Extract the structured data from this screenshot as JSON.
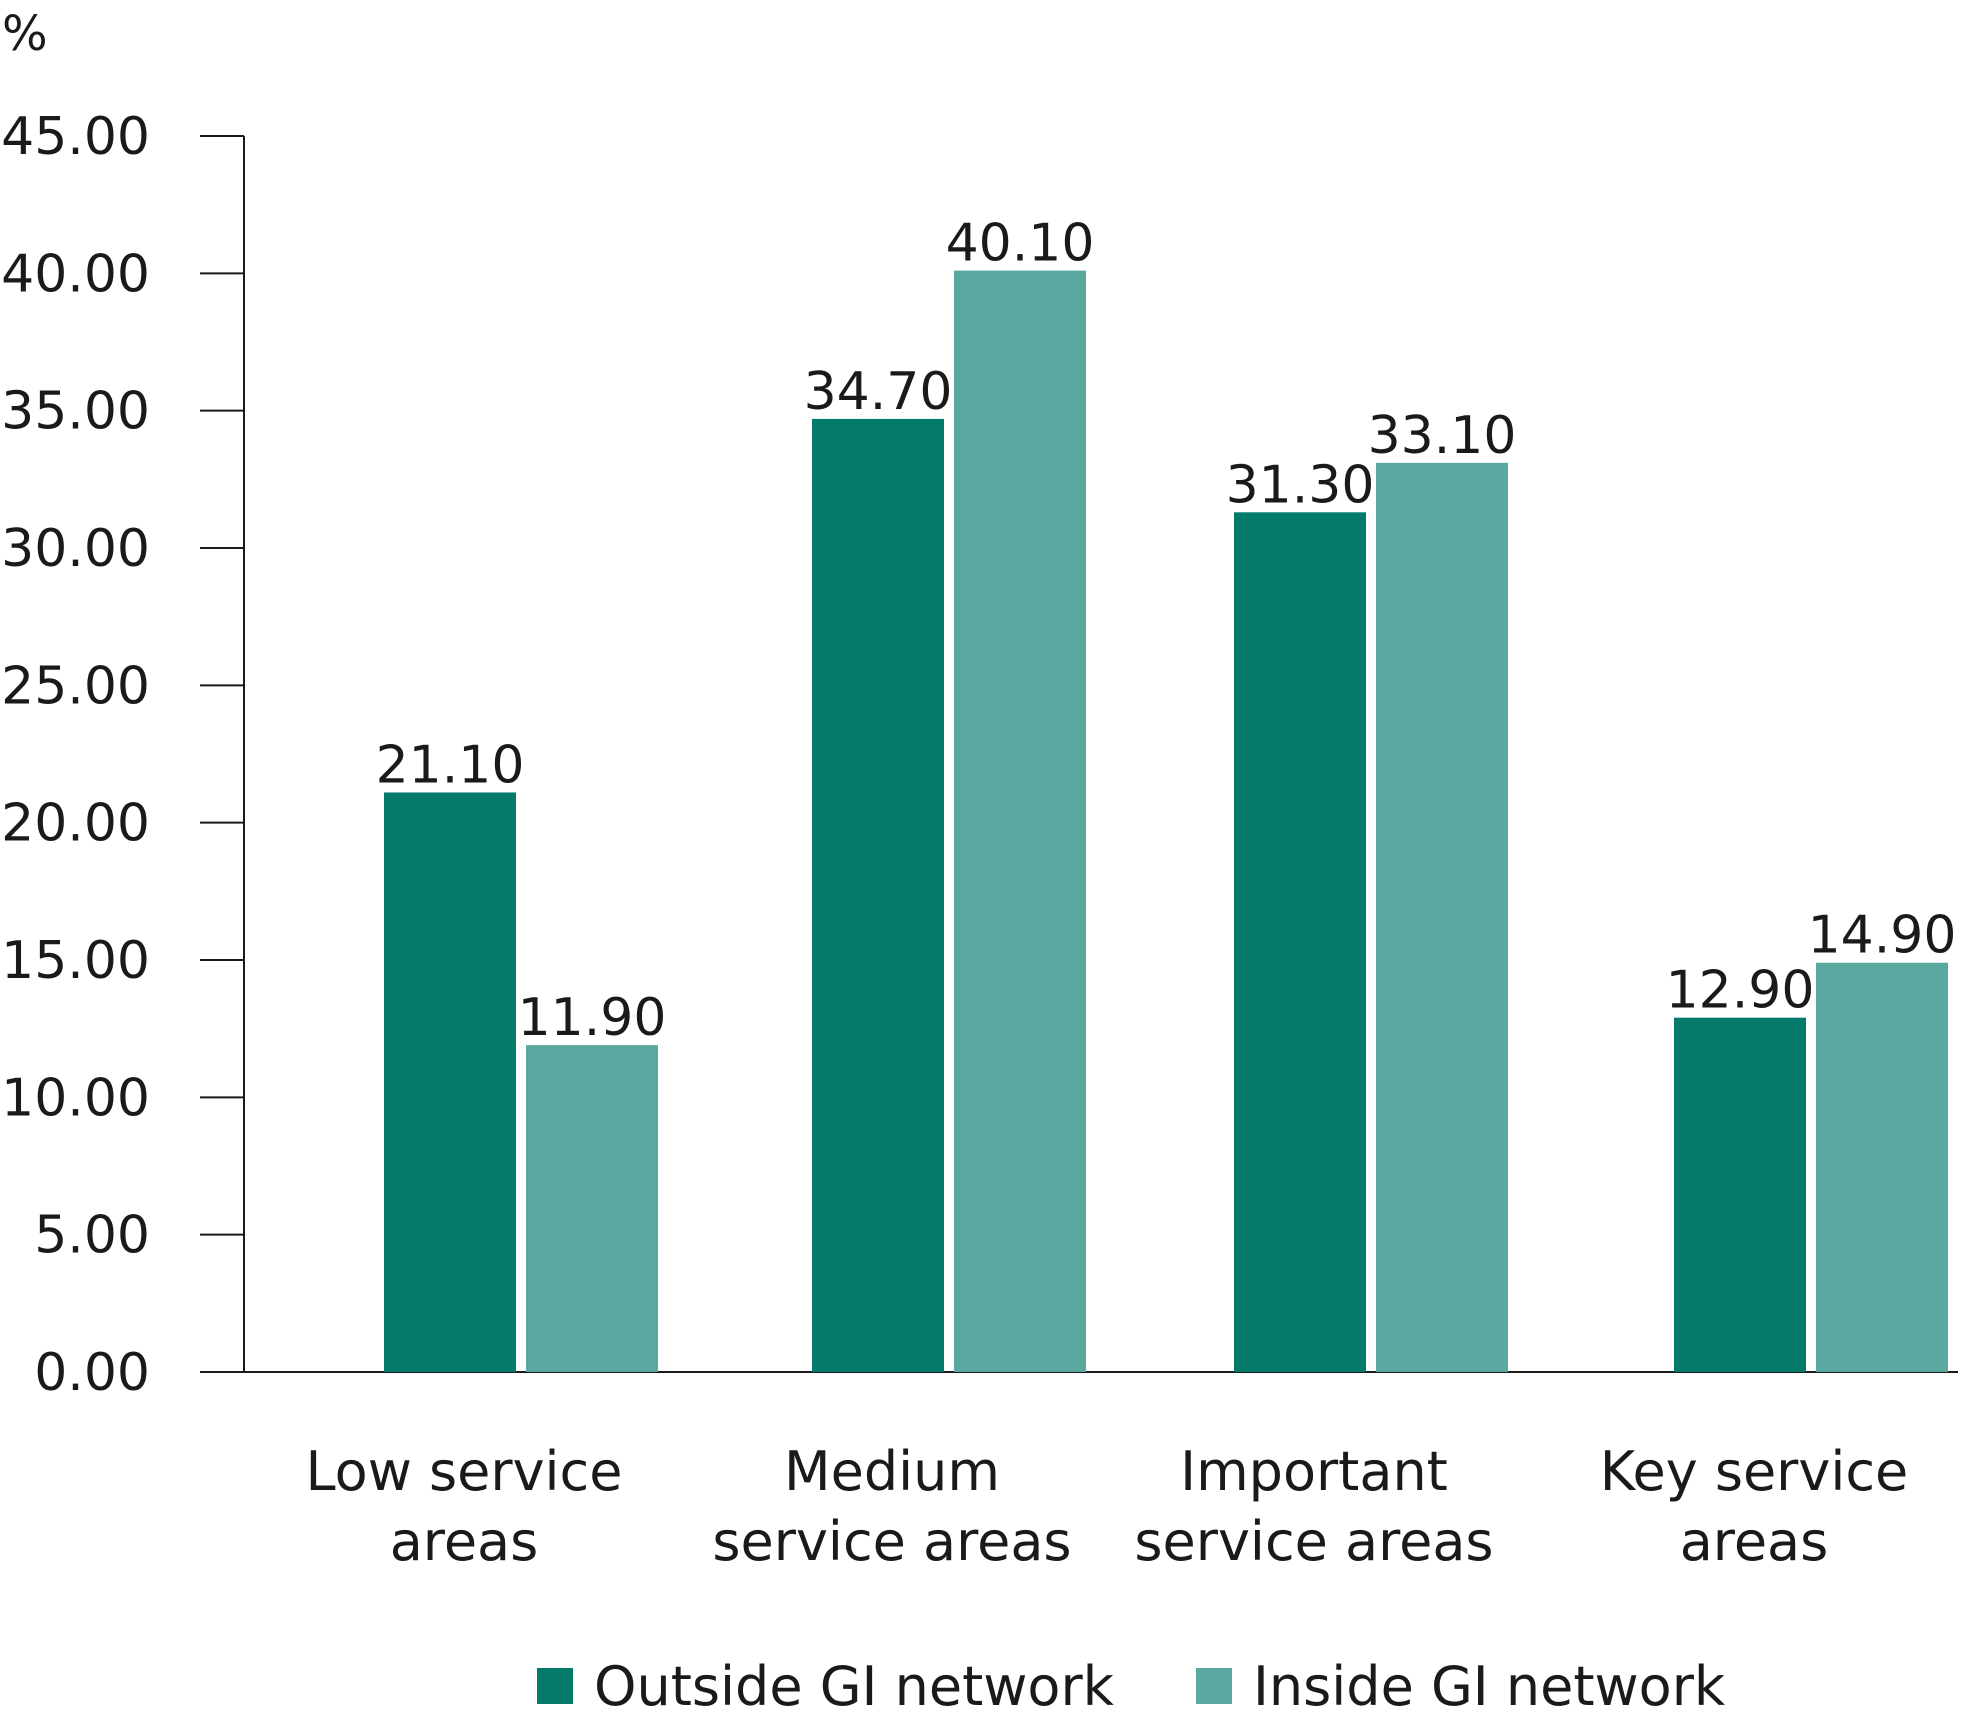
{
  "chart_data": {
    "type": "bar",
    "unit_label": "%",
    "categories": [
      [
        "Low service",
        "areas"
      ],
      [
        "Medium",
        "service areas"
      ],
      [
        "Important",
        "service areas"
      ],
      [
        "Key service",
        "areas"
      ]
    ],
    "series": [
      {
        "name": "Outside GI network",
        "color": "#037a6a",
        "values": [
          21.1,
          34.7,
          31.3,
          12.9
        ],
        "labels": [
          "21.10",
          "34.70",
          "31.30",
          "12.90"
        ]
      },
      {
        "name": "Inside GI network",
        "color": "#5aa9a0",
        "values": [
          11.9,
          40.1,
          33.1,
          14.9
        ],
        "labels": [
          "11.90",
          "40.10",
          "33.10",
          "14.90"
        ]
      }
    ],
    "y_ticks": [
      0,
      5,
      10,
      15,
      20,
      25,
      30,
      35,
      40,
      45
    ],
    "y_tick_labels": [
      "0.00",
      "5.00",
      "10.00",
      "15.00",
      "20.00",
      "25.00",
      "30.00",
      "35.00",
      "40.00",
      "45.00"
    ],
    "ylim": [
      0,
      45
    ],
    "grid": false,
    "legend_position": "bottom-center"
  }
}
